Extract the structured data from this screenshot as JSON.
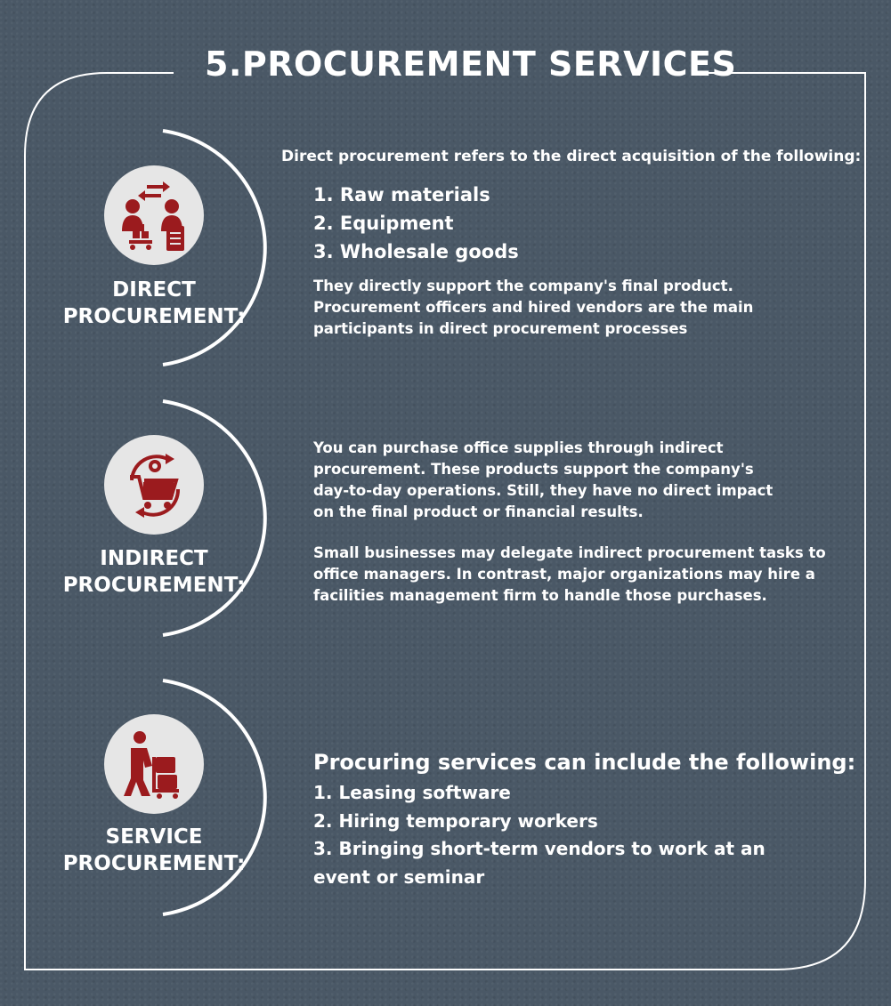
{
  "title": "5.PROCUREMENT SERVICES",
  "colors": {
    "background": "#4a5866",
    "accent": "#9b1b1e",
    "icon_bg": "#e6e6e6",
    "line": "#ffffff"
  },
  "sections": [
    {
      "icon": "buyer-seller-exchange-icon",
      "label_line1": "DIRECT",
      "label_line2": "PROCUREMENT:",
      "intro": "Direct procurement refers to the direct acquisition of the following:",
      "items": [
        "1. Raw materials",
        "2. Equipment",
        "3. Wholesale goods"
      ],
      "description": [
        "They directly support the company's final product.",
        "Procurement officers and hired vendors are the main",
        "participants in direct procurement processes"
      ]
    },
    {
      "icon": "cart-cycle-icon",
      "label_line1": "INDIRECT",
      "label_line2": "PROCUREMENT:",
      "paragraph1": [
        "You can purchase office supplies through indirect",
        "procurement. These products support the company's",
        "day-to-day operations. Still, they have no direct impact",
        "on the final product or financial results."
      ],
      "paragraph2": [
        "Small businesses may delegate indirect procurement tasks to",
        "office managers. In contrast, major organizations may hire a",
        "facilities management firm to handle those purchases."
      ]
    },
    {
      "icon": "delivery-worker-icon",
      "label_line1": "SERVICE",
      "label_line2": "PROCUREMENT:",
      "heading": "Procuring services can include the following:",
      "items": [
        "1. Leasing software",
        "2. Hiring temporary workers",
        "3. Bringing short-term vendors to work at an",
        "event or seminar"
      ]
    }
  ]
}
